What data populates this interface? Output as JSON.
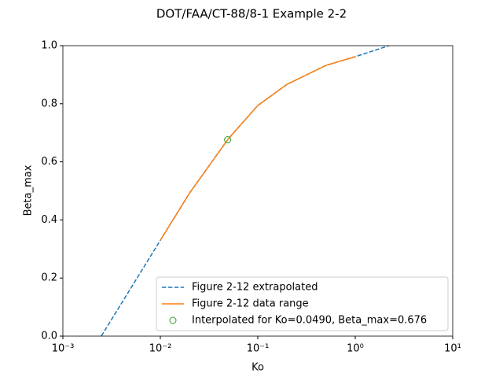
{
  "chart_data": {
    "type": "line",
    "title": "DOT/FAA/CT-88/8-1 Example 2-2",
    "x_label": "Ko",
    "y_label": "Beta_max",
    "x_scale": "log",
    "xlim": [
      0.001,
      10
    ],
    "ylim": [
      0,
      1
    ],
    "xticks": [
      {
        "value": 0.001,
        "label": "10⁻³"
      },
      {
        "value": 0.01,
        "label": "10⁻²"
      },
      {
        "value": 0.1,
        "label": "10⁻¹"
      },
      {
        "value": 1,
        "label": "10⁰"
      },
      {
        "value": 10,
        "label": "10¹"
      }
    ],
    "yticks": [
      {
        "value": 0,
        "label": "0.0"
      },
      0.2,
      0.4,
      0.6,
      0.8,
      {
        "value": 1,
        "label": "1.0"
      }
    ],
    "legend": "lower right",
    "series": [
      {
        "name": "Figure 2-12 extrapolated",
        "color": "#1f77b4",
        "style": "dashed",
        "x": [
          0.00248,
          0.01,
          0.02,
          0.05,
          0.1,
          0.2,
          0.5,
          1,
          2.22
        ],
        "values": [
          0,
          0.33,
          0.493,
          0.68,
          0.794,
          0.867,
          0.932,
          0.962,
          1
        ]
      },
      {
        "name": "Figure 2-12 data range",
        "color": "#ff7f0e",
        "style": "solid",
        "x": [
          0.01,
          0.02,
          0.05,
          0.1,
          0.2,
          0.5,
          1
        ],
        "values": [
          0.33,
          0.493,
          0.68,
          0.794,
          0.867,
          0.932,
          0.962
        ]
      },
      {
        "name": "Interpolated for Ko=0.0490, Beta_max=0.676",
        "color": "#2ca02c",
        "style": "open-circle",
        "x": [
          0.049
        ],
        "values": [
          0.676
        ]
      }
    ]
  }
}
